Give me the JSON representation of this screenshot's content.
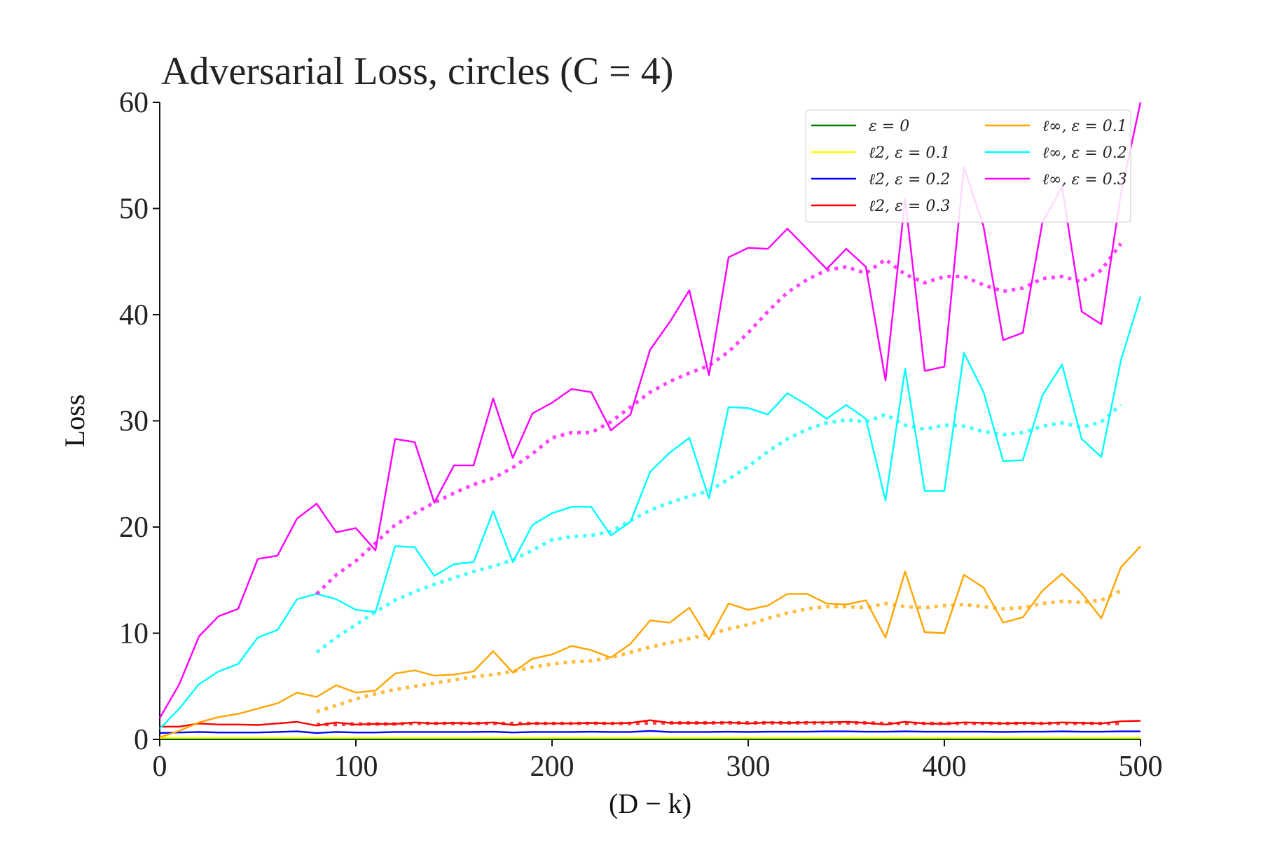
{
  "chart_data": {
    "type": "line",
    "title": "Adversarial Loss, circles (C = 4)",
    "xlabel": "(D − k)",
    "ylabel": "Loss",
    "xlim": [
      0,
      500
    ],
    "ylim": [
      0,
      60
    ],
    "xticks": [
      0,
      100,
      200,
      300,
      400,
      500
    ],
    "yticks": [
      0,
      10,
      20,
      30,
      40,
      50,
      60
    ],
    "grid": false,
    "legend_placement": "top-right",
    "x": [
      0,
      10,
      20,
      30,
      40,
      50,
      60,
      70,
      80,
      90,
      100,
      110,
      120,
      130,
      140,
      150,
      160,
      170,
      180,
      190,
      200,
      210,
      220,
      230,
      240,
      250,
      260,
      270,
      280,
      290,
      300,
      310,
      320,
      330,
      340,
      350,
      360,
      370,
      380,
      390,
      400,
      410,
      420,
      430,
      440,
      450,
      460,
      470,
      480,
      490,
      500
    ],
    "series": [
      {
        "name": "ε = 0",
        "color": "#008000",
        "style": "solid",
        "values": [
          0.05,
          0.05,
          0.05,
          0.05,
          0.05,
          0.05,
          0.05,
          0.05,
          0.05,
          0.05,
          0.05,
          0.05,
          0.05,
          0.05,
          0.05,
          0.05,
          0.05,
          0.05,
          0.05,
          0.05,
          0.05,
          0.05,
          0.05,
          0.05,
          0.05,
          0.05,
          0.05,
          0.05,
          0.05,
          0.05,
          0.05,
          0.05,
          0.05,
          0.05,
          0.05,
          0.05,
          0.05,
          0.05,
          0.05,
          0.05,
          0.05,
          0.05,
          0.05,
          0.05,
          0.05,
          0.05,
          0.05,
          0.05,
          0.05,
          0.05,
          0.05
        ]
      },
      {
        "name": "ℓ2, ε = 0.1",
        "color": "#ffff00",
        "style": "solid",
        "values": [
          0.15,
          0.15,
          0.15,
          0.15,
          0.15,
          0.15,
          0.15,
          0.15,
          0.15,
          0.15,
          0.15,
          0.15,
          0.15,
          0.15,
          0.15,
          0.15,
          0.15,
          0.15,
          0.15,
          0.15,
          0.15,
          0.15,
          0.15,
          0.15,
          0.15,
          0.15,
          0.15,
          0.15,
          0.15,
          0.15,
          0.15,
          0.15,
          0.15,
          0.15,
          0.15,
          0.15,
          0.15,
          0.15,
          0.15,
          0.15,
          0.15,
          0.15,
          0.15,
          0.15,
          0.15,
          0.15,
          0.15,
          0.15,
          0.15,
          0.15,
          0.15
        ]
      },
      {
        "name": "ℓ2, ε = 0.2",
        "color": "#0000ff",
        "style": "solid",
        "values": [
          0.6,
          0.65,
          0.7,
          0.65,
          0.65,
          0.65,
          0.7,
          0.75,
          0.6,
          0.7,
          0.65,
          0.65,
          0.7,
          0.7,
          0.7,
          0.7,
          0.7,
          0.72,
          0.65,
          0.7,
          0.7,
          0.7,
          0.72,
          0.7,
          0.7,
          0.8,
          0.7,
          0.7,
          0.7,
          0.72,
          0.7,
          0.72,
          0.72,
          0.72,
          0.75,
          0.75,
          0.72,
          0.72,
          0.75,
          0.72,
          0.72,
          0.72,
          0.72,
          0.7,
          0.72,
          0.72,
          0.75,
          0.72,
          0.72,
          0.75,
          0.75
        ]
      },
      {
        "name": "ℓ2, ε = 0.3",
        "color": "#ff0000",
        "style": "solid",
        "values": [
          1.2,
          1.2,
          1.5,
          1.4,
          1.4,
          1.35,
          1.5,
          1.65,
          1.3,
          1.6,
          1.4,
          1.45,
          1.45,
          1.6,
          1.5,
          1.55,
          1.5,
          1.6,
          1.35,
          1.5,
          1.5,
          1.5,
          1.55,
          1.5,
          1.55,
          1.8,
          1.55,
          1.55,
          1.55,
          1.6,
          1.5,
          1.6,
          1.55,
          1.6,
          1.6,
          1.65,
          1.55,
          1.4,
          1.65,
          1.5,
          1.45,
          1.6,
          1.55,
          1.5,
          1.55,
          1.5,
          1.6,
          1.55,
          1.5,
          1.7,
          1.75
        ]
      },
      {
        "name": "ℓ∞, ε = 0.1",
        "color": "#ffa500",
        "style": "solid",
        "values": [
          0.2,
          0.8,
          1.6,
          2.1,
          2.4,
          2.9,
          3.4,
          4.4,
          4.0,
          5.1,
          4.4,
          4.6,
          6.2,
          6.5,
          6.0,
          6.1,
          6.4,
          8.3,
          6.3,
          7.6,
          8.0,
          8.8,
          8.4,
          7.7,
          9.0,
          11.2,
          11.0,
          12.4,
          9.4,
          12.8,
          12.2,
          12.6,
          13.7,
          13.7,
          12.8,
          12.7,
          13.1,
          9.6,
          15.8,
          10.1,
          10.0,
          15.5,
          14.3,
          11.0,
          11.5,
          14.0,
          15.6,
          13.8,
          11.4,
          16.2,
          18.2
        ]
      },
      {
        "name": "ℓ∞, ε = 0.2",
        "color": "#00ffff",
        "style": "solid",
        "values": [
          1.0,
          2.9,
          5.2,
          6.4,
          7.1,
          9.6,
          10.3,
          13.2,
          13.7,
          13.2,
          12.2,
          12.0,
          18.2,
          18.1,
          15.4,
          16.5,
          16.7,
          21.5,
          16.7,
          20.2,
          21.3,
          21.9,
          21.9,
          19.2,
          20.5,
          25.2,
          27.0,
          28.4,
          22.7,
          31.3,
          31.2,
          30.6,
          32.6,
          31.5,
          30.2,
          31.5,
          30.2,
          22.5,
          34.9,
          23.4,
          23.4,
          36.4,
          32.7,
          26.2,
          26.3,
          32.4,
          35.3,
          28.3,
          26.6,
          35.7,
          41.7
        ]
      },
      {
        "name": "ℓ∞, ε = 0.3",
        "color": "#ff00ff",
        "style": "solid",
        "values": [
          2.0,
          5.2,
          9.7,
          11.6,
          12.3,
          17.0,
          17.3,
          20.8,
          22.2,
          19.5,
          19.9,
          17.8,
          28.3,
          28.0,
          22.3,
          25.8,
          25.8,
          32.1,
          26.5,
          30.7,
          31.7,
          33.0,
          32.7,
          29.1,
          30.6,
          36.7,
          39.3,
          42.3,
          34.3,
          45.4,
          46.3,
          46.2,
          48.1,
          46.2,
          44.3,
          46.2,
          44.5,
          33.8,
          50.9,
          34.7,
          35.1,
          53.9,
          48.3,
          37.6,
          38.3,
          48.7,
          52.0,
          40.3,
          39.1,
          51.4,
          60.0
        ]
      }
    ],
    "trend_x": [
      80,
      90,
      100,
      110,
      120,
      130,
      140,
      150,
      160,
      170,
      180,
      190,
      200,
      210,
      220,
      230,
      240,
      250,
      260,
      270,
      280,
      290,
      300,
      310,
      320,
      330,
      340,
      350,
      360,
      370,
      380,
      390,
      400,
      410,
      420,
      430,
      440,
      450,
      460,
      470,
      480,
      490
    ],
    "trend_series": [
      {
        "of": "ℓ∞, ε = 0.3",
        "color": "#ff00ff",
        "values": [
          13.7,
          15.5,
          16.8,
          18.5,
          20.2,
          21.3,
          22.3,
          23.2,
          24.0,
          24.6,
          25.6,
          26.9,
          28.4,
          28.9,
          28.9,
          29.9,
          31.3,
          32.7,
          33.7,
          34.5,
          35.2,
          36.5,
          38.3,
          40.3,
          42.1,
          43.3,
          44.2,
          44.5,
          43.9,
          45.2,
          43.8,
          43.0,
          43.6,
          43.6,
          42.8,
          42.2,
          42.5,
          43.4,
          43.6,
          43.1,
          44.2,
          46.7
        ]
      },
      {
        "of": "ℓ∞, ε = 0.2",
        "color": "#00ffff",
        "values": [
          8.2,
          9.6,
          10.8,
          12.0,
          13.1,
          13.9,
          14.6,
          15.2,
          15.8,
          16.3,
          16.9,
          17.8,
          18.8,
          19.1,
          19.2,
          19.6,
          20.6,
          21.6,
          22.3,
          22.9,
          23.4,
          24.5,
          25.7,
          27.1,
          28.3,
          29.2,
          29.8,
          30.1,
          29.9,
          30.6,
          29.6,
          29.2,
          29.6,
          29.5,
          29.0,
          28.7,
          28.9,
          29.5,
          29.8,
          29.4,
          29.9,
          31.5
        ]
      },
      {
        "of": "ℓ∞, ε = 0.1",
        "color": "#ffa500",
        "values": [
          2.6,
          3.2,
          3.8,
          4.3,
          4.7,
          5.0,
          5.3,
          5.6,
          5.9,
          6.1,
          6.4,
          6.8,
          7.1,
          7.3,
          7.4,
          7.7,
          8.2,
          8.7,
          9.1,
          9.5,
          9.9,
          10.4,
          10.8,
          11.4,
          11.9,
          12.3,
          12.5,
          12.5,
          12.4,
          12.8,
          12.5,
          12.4,
          12.6,
          12.7,
          12.5,
          12.3,
          12.4,
          12.8,
          13.0,
          12.9,
          13.1,
          14.0
        ]
      },
      {
        "of": "ℓ2, ε = 0.3",
        "color": "#ff0000",
        "values": [
          1.4,
          1.4,
          1.45,
          1.45,
          1.45,
          1.5,
          1.5,
          1.5,
          1.5,
          1.5,
          1.5,
          1.5,
          1.5,
          1.5,
          1.5,
          1.5,
          1.5,
          1.55,
          1.55,
          1.55,
          1.55,
          1.55,
          1.55,
          1.55,
          1.55,
          1.55,
          1.55,
          1.55,
          1.55,
          1.5,
          1.5,
          1.5,
          1.5,
          1.5,
          1.5,
          1.5,
          1.5,
          1.5,
          1.5,
          1.5,
          1.5,
          1.5
        ]
      }
    ]
  }
}
